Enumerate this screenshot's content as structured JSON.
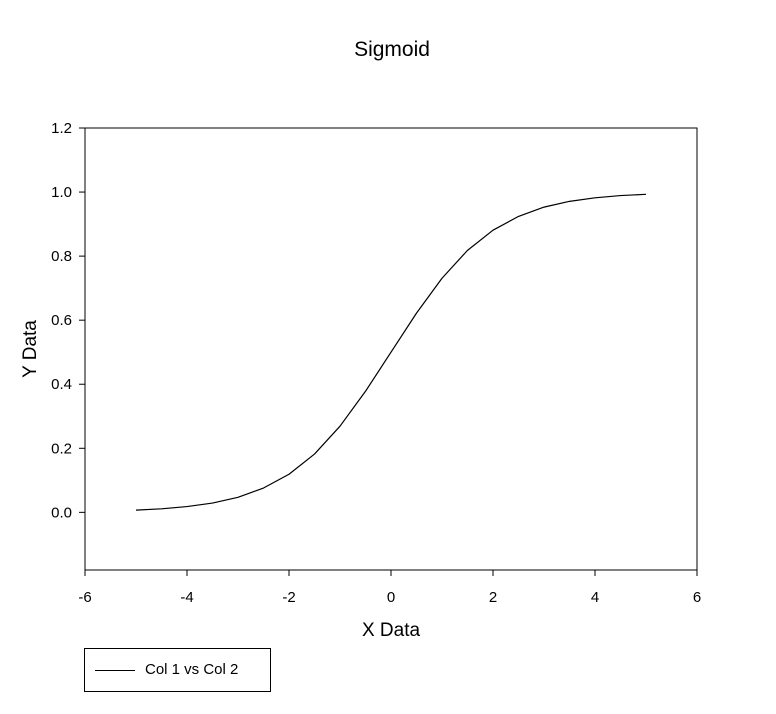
{
  "chart_data": {
    "type": "line",
    "title": "Sigmoid",
    "xlabel": "X Data",
    "ylabel": "Y Data",
    "xlim": [
      -6,
      6
    ],
    "ylim": [
      -0.18,
      1.2
    ],
    "xticks": [
      -6,
      -4,
      -2,
      0,
      2,
      4,
      6
    ],
    "xtick_labels": [
      "-6",
      "-4",
      "-2",
      "0",
      "2",
      "4",
      "6"
    ],
    "yticks": [
      0.0,
      0.2,
      0.4,
      0.6,
      0.8,
      1.0,
      1.2
    ],
    "ytick_labels": [
      "0.0",
      "0.2",
      "0.4",
      "0.6",
      "0.8",
      "1.0",
      "1.2"
    ],
    "grid": false,
    "legend_position": "bottom-left",
    "series": [
      {
        "name": "Col 1 vs Col 2",
        "color": "#000000",
        "x": [
          -5.0,
          -4.5,
          -4.0,
          -3.5,
          -3.0,
          -2.5,
          -2.0,
          -1.5,
          -1.0,
          -0.5,
          0.0,
          0.5,
          1.0,
          1.5,
          2.0,
          2.5,
          3.0,
          3.5,
          4.0,
          4.5,
          5.0
        ],
        "y": [
          0.007,
          0.011,
          0.018,
          0.029,
          0.047,
          0.076,
          0.119,
          0.182,
          0.269,
          0.378,
          0.5,
          0.622,
          0.731,
          0.818,
          0.881,
          0.924,
          0.953,
          0.971,
          0.982,
          0.989,
          0.993
        ]
      }
    ]
  }
}
